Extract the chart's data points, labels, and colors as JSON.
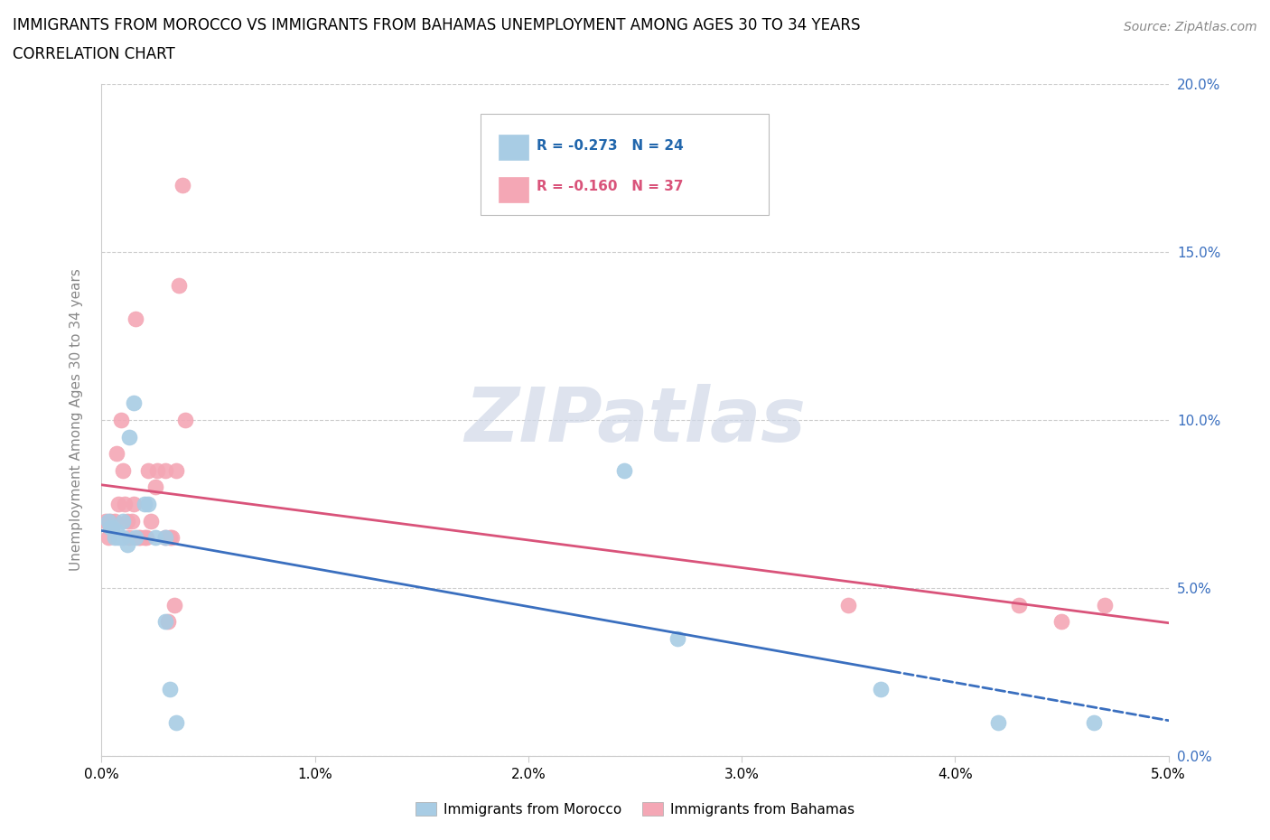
{
  "title_line1": "IMMIGRANTS FROM MOROCCO VS IMMIGRANTS FROM BAHAMAS UNEMPLOYMENT AMONG AGES 30 TO 34 YEARS",
  "title_line2": "CORRELATION CHART",
  "source": "Source: ZipAtlas.com",
  "ylabel": "Unemployment Among Ages 30 to 34 years",
  "xlim": [
    0.0,
    0.05
  ],
  "ylim": [
    0.0,
    0.2
  ],
  "xticks": [
    0.0,
    0.01,
    0.02,
    0.03,
    0.04,
    0.05
  ],
  "yticks": [
    0.0,
    0.05,
    0.1,
    0.15,
    0.2
  ],
  "morocco_R": -0.273,
  "morocco_N": 24,
  "bahamas_R": -0.16,
  "bahamas_N": 37,
  "morocco_color": "#a8cce4",
  "bahamas_color": "#f4a7b5",
  "morocco_line_color": "#3a6fbf",
  "bahamas_line_color": "#d9537a",
  "watermark": "ZIPatlas",
  "morocco_x": [
    0.0003,
    0.0004,
    0.0005,
    0.0006,
    0.0007,
    0.0008,
    0.001,
    0.001,
    0.0012,
    0.0013,
    0.0015,
    0.0016,
    0.002,
    0.0022,
    0.0025,
    0.003,
    0.003,
    0.0032,
    0.0035,
    0.0245,
    0.027,
    0.0365,
    0.042,
    0.0465
  ],
  "morocco_y": [
    0.07,
    0.068,
    0.068,
    0.065,
    0.067,
    0.065,
    0.07,
    0.065,
    0.063,
    0.095,
    0.105,
    0.065,
    0.075,
    0.075,
    0.065,
    0.065,
    0.04,
    0.02,
    0.01,
    0.085,
    0.035,
    0.02,
    0.01,
    0.01
  ],
  "bahamas_x": [
    0.0002,
    0.0003,
    0.0004,
    0.0005,
    0.0006,
    0.0007,
    0.0008,
    0.0009,
    0.001,
    0.0011,
    0.0012,
    0.0013,
    0.0014,
    0.0015,
    0.0016,
    0.0017,
    0.0018,
    0.002,
    0.0021,
    0.0022,
    0.0023,
    0.0025,
    0.0026,
    0.003,
    0.003,
    0.0031,
    0.0032,
    0.0033,
    0.0034,
    0.0035,
    0.0036,
    0.0038,
    0.0039,
    0.035,
    0.043,
    0.045,
    0.047
  ],
  "bahamas_y": [
    0.07,
    0.065,
    0.07,
    0.068,
    0.07,
    0.09,
    0.075,
    0.1,
    0.085,
    0.075,
    0.07,
    0.065,
    0.07,
    0.075,
    0.13,
    0.065,
    0.065,
    0.065,
    0.065,
    0.085,
    0.07,
    0.08,
    0.085,
    0.085,
    0.065,
    0.04,
    0.065,
    0.065,
    0.045,
    0.085,
    0.14,
    0.17,
    0.1,
    0.045,
    0.045,
    0.04,
    0.045
  ]
}
